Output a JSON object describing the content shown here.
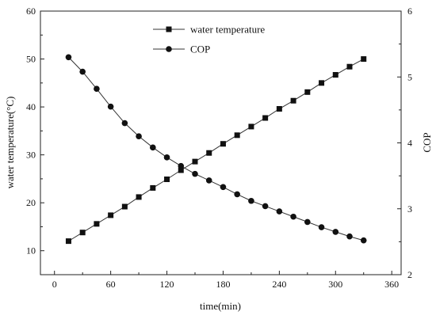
{
  "chart_data": {
    "type": "line",
    "xlabel": "time(min)",
    "ylabel_left": "water temperature(°C)",
    "ylabel_right": "COP",
    "xlim": [
      -15,
      370
    ],
    "ylim_left": [
      5,
      60
    ],
    "ylim_right": [
      2,
      6
    ],
    "xticks": [
      0,
      60,
      120,
      180,
      240,
      300,
      360
    ],
    "yticks_left": [
      10,
      20,
      30,
      40,
      50,
      60
    ],
    "yticks_right": [
      2,
      3,
      4,
      5,
      6
    ],
    "grid": false,
    "legend_position": "top-center",
    "x": [
      15,
      30,
      45,
      60,
      75,
      90,
      105,
      120,
      135,
      150,
      165,
      180,
      195,
      210,
      225,
      240,
      255,
      270,
      285,
      300,
      315,
      330
    ],
    "series": [
      {
        "name": "water temperature",
        "axis": "left",
        "marker": "square",
        "values": [
          12.0,
          13.8,
          15.6,
          17.4,
          19.2,
          21.2,
          23.1,
          24.9,
          26.8,
          28.6,
          30.4,
          32.3,
          34.1,
          35.9,
          37.7,
          39.6,
          41.3,
          43.1,
          45.0,
          46.7,
          48.4,
          50.0
        ]
      },
      {
        "name": "COP",
        "axis": "right",
        "marker": "circle",
        "values": [
          5.3,
          5.08,
          4.82,
          4.55,
          4.3,
          4.1,
          3.93,
          3.78,
          3.65,
          3.53,
          3.43,
          3.33,
          3.22,
          3.12,
          3.04,
          2.96,
          2.88,
          2.8,
          2.72,
          2.65,
          2.58,
          2.52
        ]
      }
    ]
  }
}
